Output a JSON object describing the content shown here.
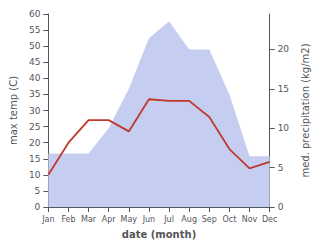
{
  "chart_data": {
    "type": "line",
    "xlabel": "date (month)",
    "ylabel": "max temp (C)",
    "y2label": "med. precipitation (kg/m2)",
    "categories": [
      "Jan",
      "Feb",
      "Mar",
      "Apr",
      "May",
      "Jun",
      "Jul",
      "Aug",
      "Sep",
      "Oct",
      "Nov",
      "Dec"
    ],
    "series": [
      {
        "type": "area",
        "color": "#c5cef0",
        "values": [
          16.625,
          16.625,
          16.625,
          24.5,
          36.75,
          52.5,
          57.75,
          49,
          49,
          35,
          15.75,
          15.75
        ]
      },
      {
        "type": "line",
        "color": "#c0392b",
        "values": [
          10,
          20,
          27,
          27,
          23.5,
          33.5,
          33,
          33,
          28,
          18,
          12,
          14
        ]
      }
    ],
    "ylim": [
      0,
      60
    ],
    "yticks": [
      0,
      5,
      10,
      15,
      20,
      25,
      30,
      35,
      40,
      45,
      50,
      55,
      60
    ],
    "y2lim": [
      0,
      24.5
    ],
    "y2ticks": [
      0,
      5,
      10,
      15,
      20
    ],
    "grid": false
  }
}
